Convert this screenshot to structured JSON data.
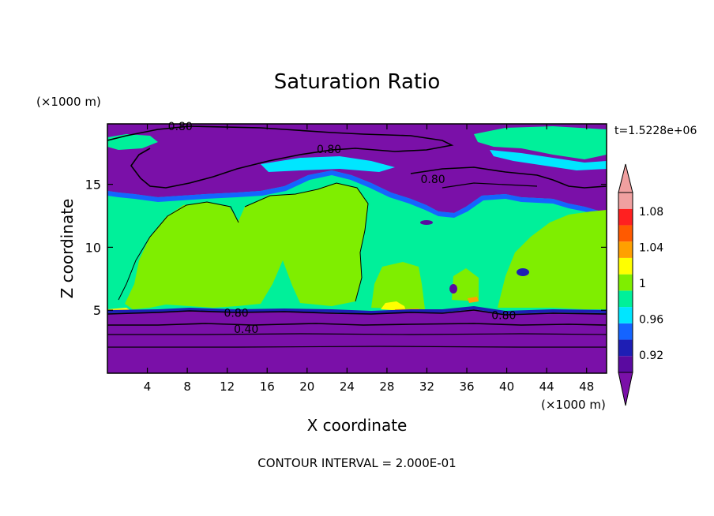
{
  "chart_data": {
    "type": "heatmap",
    "title": "Saturation Ratio",
    "xlabel": "X coordinate",
    "ylabel": "Z coordinate",
    "x_unit": "(×1000 m)",
    "y_unit": "(×1000 m)",
    "time_label": "t=1.5228e+06",
    "footer": "CONTOUR INTERVAL = 2.000E-01",
    "xlim": [
      0,
      50
    ],
    "ylim": [
      0,
      19.8
    ],
    "x_ticks": [
      4,
      8,
      12,
      16,
      20,
      24,
      28,
      32,
      36,
      40,
      44,
      48
    ],
    "x_tick_labels": [
      "4",
      "8",
      "12",
      "16",
      "20",
      "24",
      "28",
      "32",
      "36",
      "40",
      "44",
      "48"
    ],
    "y_ticks": [
      5,
      10,
      15
    ],
    "y_tick_labels": [
      "5",
      "10",
      "15"
    ],
    "colorbar": {
      "tick_labels": [
        "0.92",
        "0.96",
        "1",
        "1.04",
        "1.08"
      ],
      "levels": [
        0.9,
        0.92,
        0.94,
        0.96,
        0.98,
        1.0,
        1.02,
        1.04,
        1.06,
        1.08,
        1.1
      ],
      "colors": [
        "#5a0aa0",
        "#1e1eb4",
        "#1464ff",
        "#00e6ff",
        "#00f09a",
        "#7fee00",
        "#ffff00",
        "#ffa000",
        "#ff5a00",
        "#ff2020",
        "#f0a0a0"
      ],
      "under_color": "#7a10a8",
      "over_color": "#f0a0a0"
    },
    "contour_labels": [
      {
        "text": "0.80",
        "x": 7.3,
        "y": 19.6
      },
      {
        "text": "0.80",
        "x": 22.2,
        "y": 17.8
      },
      {
        "text": "0.80",
        "x": 32.6,
        "y": 15.4
      },
      {
        "text": "0.80",
        "x": 12.9,
        "y": 4.8
      },
      {
        "text": "0.40",
        "x": 13.9,
        "y": 3.5
      },
      {
        "text": "0.80",
        "x": 39.7,
        "y": 4.6
      }
    ]
  }
}
